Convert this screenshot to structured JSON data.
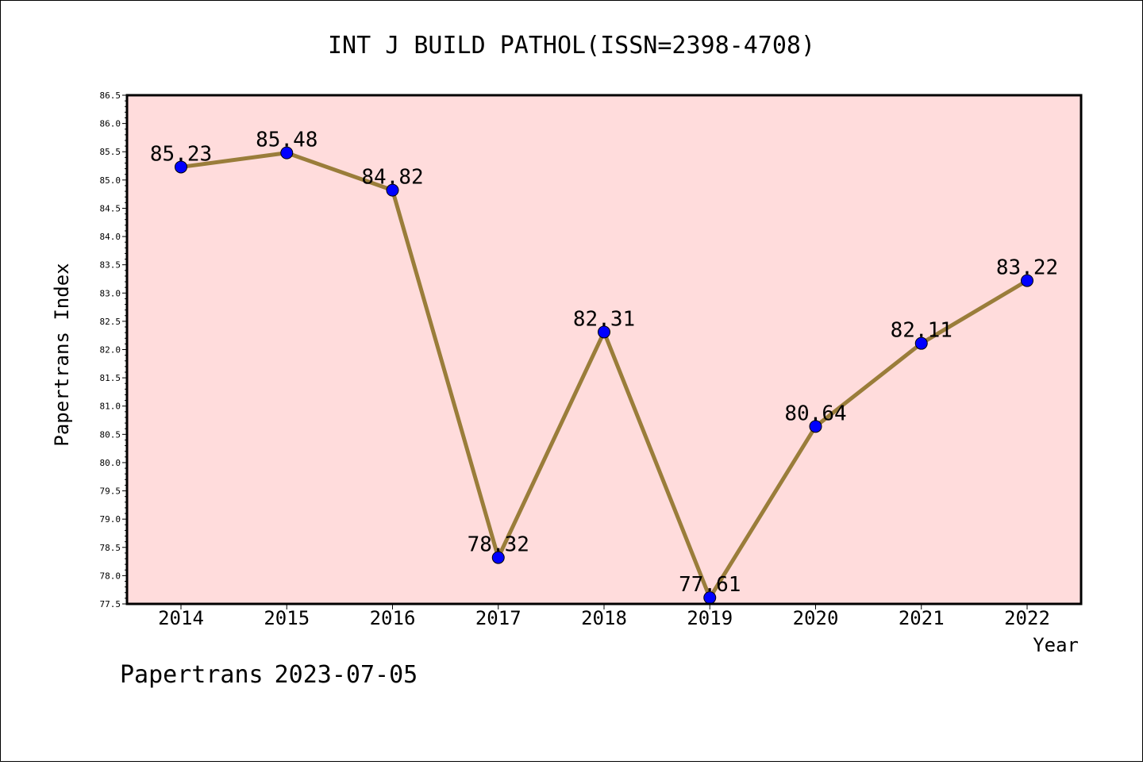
{
  "chart_data": {
    "type": "line",
    "title": "INT J BUILD PATHOL(ISSN=2398-4708)",
    "xlabel": "Year",
    "ylabel": "Papertrans Index",
    "categories": [
      "2014",
      "2015",
      "2016",
      "2017",
      "2018",
      "2019",
      "2020",
      "2021",
      "2022"
    ],
    "series": [
      {
        "values": [
          85.23,
          85.48,
          84.82,
          78.32,
          82.31,
          77.61,
          80.64,
          82.11,
          83.22
        ],
        "labels": [
          "85.23",
          "85.48",
          "84.82",
          "78.32",
          "82.31",
          "77.61",
          "80.64",
          "82.11",
          "83.22"
        ]
      }
    ],
    "ylim": [
      77.5,
      86.5
    ],
    "yticks": [
      "77.5",
      "78.0",
      "78.5",
      "79.0",
      "79.5",
      "80.0",
      "80.5",
      "81.0",
      "81.5",
      "82.0",
      "82.5",
      "83.0",
      "83.5",
      "84.0",
      "84.5",
      "85.0",
      "85.5",
      "86.0",
      "86.5"
    ],
    "grid": false,
    "legend": "none",
    "colors": {
      "line": "#9a7d3a",
      "marker": "#0000ff",
      "plot_background": "#ffdcdc",
      "frame": "#000000"
    }
  },
  "footer": {
    "brand": "Papertrans",
    "date": "2023-07-05"
  }
}
